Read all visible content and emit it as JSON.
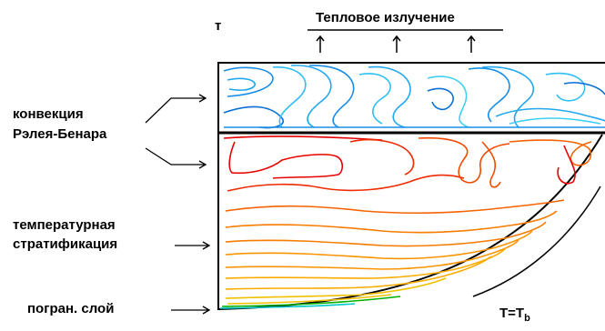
{
  "labels": {
    "top_label": "т",
    "heat_radiation": "Тепловое излучение",
    "convection_line1": "конвекция",
    "convection_line2": "Рэлея-Бенара",
    "stratification_line1": "температурная",
    "stratification_line2": "стратификация",
    "boundary_layer": "погран. слой",
    "wall_temp_main": "T=T",
    "wall_temp_sub": "b"
  },
  "colors": {
    "upper_layer_contours": [
      "#0a6fd6",
      "#1a8ee6",
      "#22a8f0",
      "#2cc0f4",
      "#3fd0f4"
    ],
    "lower_layer_contours": [
      "#e80000",
      "#ee2a00",
      "#f24a00",
      "#f56400",
      "#f77c00",
      "#f99400",
      "#fbac00",
      "#f0c000"
    ],
    "bottom_layer_accent": [
      "#00b000",
      "#00c8c8"
    ],
    "arrows": "#000000"
  }
}
